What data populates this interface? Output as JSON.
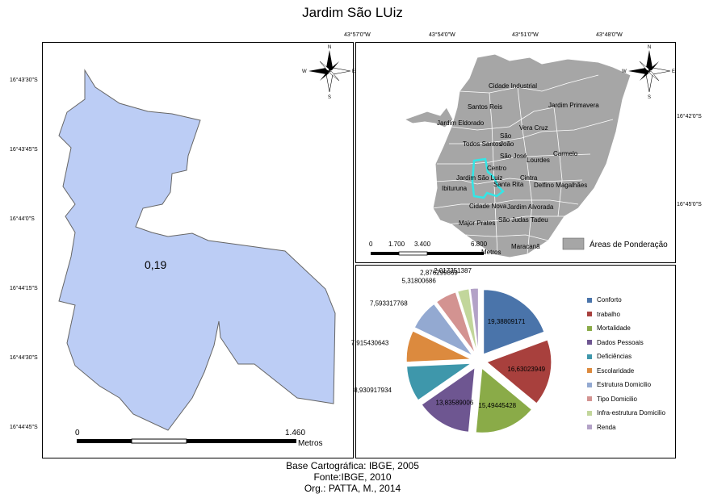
{
  "title": "Jardim São LUiz",
  "main_map": {
    "value_label": "0,19",
    "fill_color": "#bccdf5",
    "lat_labels": [
      "16°43'30\"S",
      "16°43'45\"S",
      "16°44'0\"S",
      "16°44'15\"S",
      "16°44'30\"S",
      "16°44'45\"S"
    ],
    "scale": {
      "start": "0",
      "end": "1.460",
      "unit": "Metros"
    },
    "compass": {
      "n": "N",
      "s": "S",
      "e": "E",
      "w": "W"
    }
  },
  "inset_map": {
    "lon_labels": [
      "43°57'0\"W",
      "43°54'0\"W",
      "43°51'0\"W",
      "43°48'0\"W"
    ],
    "lat_labels": [
      "16°42'0\"S",
      "16°45'0\"S"
    ],
    "districts": [
      "Cidade Industrial",
      "Santos Reis",
      "Jardim Primavera",
      "Jardim Eldorado",
      "São",
      "João",
      "Vera Cruz",
      "Todos Santos",
      "São José",
      "Carmelo",
      "Lourdes",
      "Centro",
      "Jardim São Luiz",
      "Cintra",
      "Ibituruna",
      "Santa Rita",
      "Delfino Magalhães",
      "Cidade Nova",
      "Jardim Alvorada",
      "Major Prates",
      "São Judas Tadeu",
      "Maracanã"
    ],
    "scale": {
      "ticks": [
        "0",
        "1.700",
        "3.400",
        "6.800"
      ],
      "unit": "Metros"
    },
    "legend_label": "Áreas de Ponderação",
    "region_color": "#a6a6a6",
    "highlight_color": "#33e6e6",
    "compass": {
      "n": "N",
      "s": "S",
      "e": "E",
      "w": "W"
    }
  },
  "chart_data": {
    "type": "pie",
    "exploded": true,
    "series": [
      {
        "name": "Conforto",
        "value": 19.38809171,
        "label": "19,38809171",
        "color": "#4a74aa"
      },
      {
        "name": "trabalho",
        "value": 16.63023949,
        "label": "16,63023949",
        "color": "#a8403d"
      },
      {
        "name": "Mortalidade",
        "value": 15.49445428,
        "label": "15,49445428",
        "color": "#8aab48"
      },
      {
        "name": "Dados Pessoais",
        "value": 13.83589006,
        "label": "13,83589006",
        "color": "#6e5691"
      },
      {
        "name": "Deficiências",
        "value": 8.930917934,
        "label": "8,930917934",
        "color": "#3e97ab"
      },
      {
        "name": "Escolaridade",
        "value": 7.915430643,
        "label": "7,915430643",
        "color": "#dc8a3e"
      },
      {
        "name": "Estrutura Domicilio",
        "value": 7.593317768,
        "label": "7,593317768",
        "color": "#93a9d1"
      },
      {
        "name": "Tipo Domicilio",
        "value": 5.31800686,
        "label": "5,31800686",
        "color": "#d39391"
      },
      {
        "name": "Infra-estrutura  Domicilio",
        "value": 2.876299869,
        "label": "2,876299869",
        "color": "#c2d69b"
      },
      {
        "name": "Renda",
        "value": 2.017351387,
        "label": "2,017351387",
        "color": "#b3a2c7"
      }
    ],
    "legend_position": "right"
  },
  "credits": [
    "Base  Cartográfica: IBGE, 2005",
    "Fonte:IBGE, 2010",
    "Org.: PATTA, M., 2014"
  ]
}
